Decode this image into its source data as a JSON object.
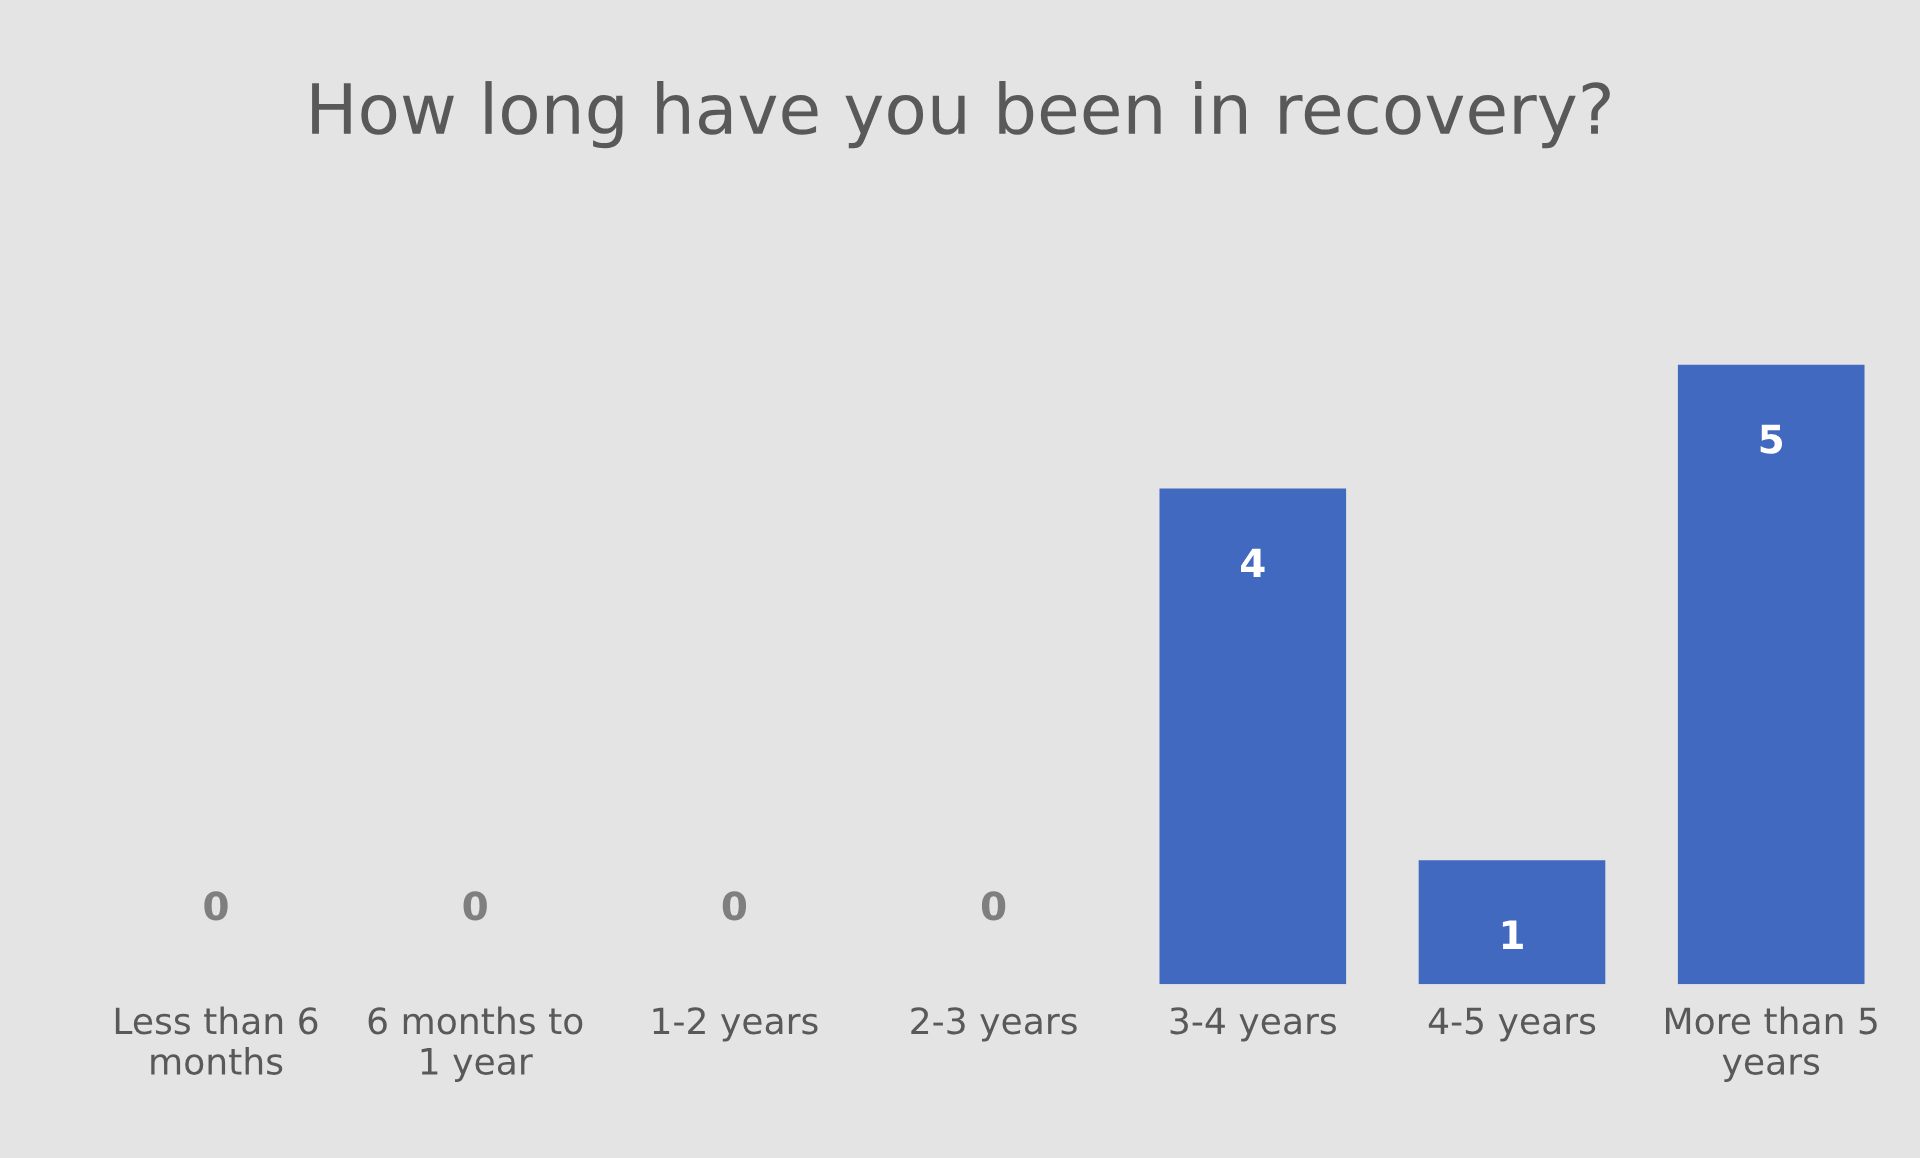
{
  "chart_data": {
    "type": "bar",
    "title": "How long have you been in recovery?",
    "categories": [
      "Less than 6\nmonths",
      "6 months to\n1 year",
      "1-2 years",
      "2-3 years",
      "3-4 years",
      "4-5 years",
      "More than 5\nyears"
    ],
    "values": [
      0,
      0,
      0,
      0,
      4,
      1,
      5
    ],
    "color": "#4169c0",
    "data_labels": true,
    "grid": false
  }
}
